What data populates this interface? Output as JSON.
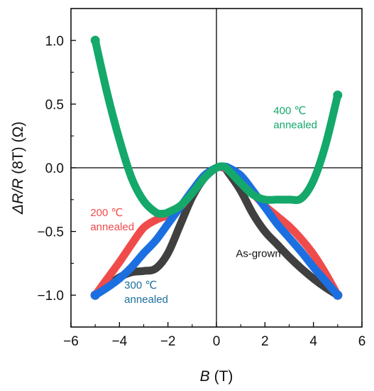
{
  "chart_data": {
    "type": "line",
    "xlabel_symbol": "B",
    "xlabel_unit": "(T)",
    "ylabel_symbol": "ΔR/R",
    "ylabel_rest": "(8T) (Ω)",
    "xlim": [
      -6,
      6
    ],
    "ylim": [
      -1.25,
      1.25
    ],
    "xticks": [
      -6,
      -4,
      -2,
      0,
      2,
      4,
      6
    ],
    "xtick_labels": [
      "−6",
      "−4",
      "−2",
      "0",
      "2",
      "4",
      "6"
    ],
    "yticks": [
      1.0,
      0.5,
      0.0,
      -0.5,
      -1.0
    ],
    "ytick_labels": [
      "1.0",
      "0.5",
      "0.0",
      "−0.5",
      "−1.0"
    ],
    "grid": false,
    "zero_lines": true,
    "series": [
      {
        "name": "As-grown",
        "color": "#404040",
        "points": [
          [
            -5,
            -1.0
          ],
          [
            -4.5,
            -0.93
          ],
          [
            -4,
            -0.86
          ],
          [
            -3.5,
            -0.82
          ],
          [
            -3,
            -0.81
          ],
          [
            -2.5,
            -0.79
          ],
          [
            -2,
            -0.67
          ],
          [
            -1.5,
            -0.45
          ],
          [
            -1,
            -0.23
          ],
          [
            -0.5,
            -0.08
          ],
          [
            0,
            0.0
          ],
          [
            0.3,
            0.0
          ],
          [
            0.5,
            -0.04
          ],
          [
            1,
            -0.18
          ],
          [
            1.5,
            -0.36
          ],
          [
            2,
            -0.5
          ],
          [
            2.5,
            -0.6
          ],
          [
            3,
            -0.7
          ],
          [
            3.5,
            -0.79
          ],
          [
            4,
            -0.87
          ],
          [
            4.5,
            -0.94
          ],
          [
            5,
            -1.0
          ]
        ]
      },
      {
        "name": "200 ℃ annealed",
        "color": "#f04b4b",
        "points": [
          [
            -5,
            -1.0
          ],
          [
            -4.5,
            -0.87
          ],
          [
            -4,
            -0.74
          ],
          [
            -3.5,
            -0.6
          ],
          [
            -3,
            -0.47
          ],
          [
            -2.5,
            -0.41
          ],
          [
            -2,
            -0.37
          ],
          [
            -1.5,
            -0.31
          ],
          [
            -1,
            -0.19
          ],
          [
            -0.5,
            -0.07
          ],
          [
            0,
            0.0
          ],
          [
            0.3,
            0.0
          ],
          [
            0.5,
            -0.02
          ],
          [
            1,
            -0.1
          ],
          [
            1.5,
            -0.2
          ],
          [
            2,
            -0.3
          ],
          [
            2.5,
            -0.38
          ],
          [
            3,
            -0.46
          ],
          [
            3.5,
            -0.56
          ],
          [
            4,
            -0.68
          ],
          [
            4.5,
            -0.83
          ],
          [
            5,
            -1.0
          ]
        ]
      },
      {
        "name": "300 ℃ annealed",
        "color": "#1c6fe0",
        "points": [
          [
            -5,
            -1.0
          ],
          [
            -4.5,
            -0.94
          ],
          [
            -4,
            -0.87
          ],
          [
            -3.5,
            -0.78
          ],
          [
            -3,
            -0.67
          ],
          [
            -2.5,
            -0.57
          ],
          [
            -2,
            -0.44
          ],
          [
            -1.5,
            -0.31
          ],
          [
            -1,
            -0.18
          ],
          [
            -0.5,
            -0.06
          ],
          [
            0,
            0.0
          ],
          [
            0.3,
            0.01
          ],
          [
            0.5,
            0.0
          ],
          [
            1,
            -0.06
          ],
          [
            1.5,
            -0.18
          ],
          [
            2,
            -0.31
          ],
          [
            2.5,
            -0.44
          ],
          [
            3,
            -0.55
          ],
          [
            3.5,
            -0.66
          ],
          [
            4,
            -0.78
          ],
          [
            4.5,
            -0.89
          ],
          [
            5,
            -1.0
          ]
        ]
      },
      {
        "name": "400 ℃ annealed",
        "color": "#14a86b",
        "points": [
          [
            -5,
            1.0
          ],
          [
            -4.5,
            0.58
          ],
          [
            -4,
            0.22
          ],
          [
            -3.5,
            -0.08
          ],
          [
            -3,
            -0.26
          ],
          [
            -2.5,
            -0.35
          ],
          [
            -2.2,
            -0.36
          ],
          [
            -2,
            -0.35
          ],
          [
            -1.5,
            -0.3
          ],
          [
            -1,
            -0.2
          ],
          [
            -0.5,
            -0.08
          ],
          [
            0,
            0.0
          ],
          [
            0.3,
            0.01
          ],
          [
            0.5,
            -0.02
          ],
          [
            1,
            -0.12
          ],
          [
            1.5,
            -0.21
          ],
          [
            2,
            -0.25
          ],
          [
            2.5,
            -0.25
          ],
          [
            3,
            -0.25
          ],
          [
            3.5,
            -0.24
          ],
          [
            4,
            -0.1
          ],
          [
            4.5,
            0.18
          ],
          [
            5,
            0.57
          ]
        ]
      }
    ],
    "annotations": [
      {
        "id": "ann-200",
        "lines": [
          "200 ℃",
          "annealed"
        ],
        "color": "#f04b4b",
        "x": -5.2,
        "y": -0.38
      },
      {
        "id": "ann-300",
        "lines": [
          "300 ℃",
          "annealed"
        ],
        "color": "#1c6f9a",
        "x": -3.8,
        "y": -0.95
      },
      {
        "id": "ann-asgrown",
        "lines": [
          "As-grown"
        ],
        "color": "#111111",
        "x": 0.8,
        "y": -0.7
      },
      {
        "id": "ann-400",
        "lines": [
          "400 ℃",
          "annealed"
        ],
        "color": "#14a86b",
        "x": 2.35,
        "y": 0.42
      }
    ]
  }
}
